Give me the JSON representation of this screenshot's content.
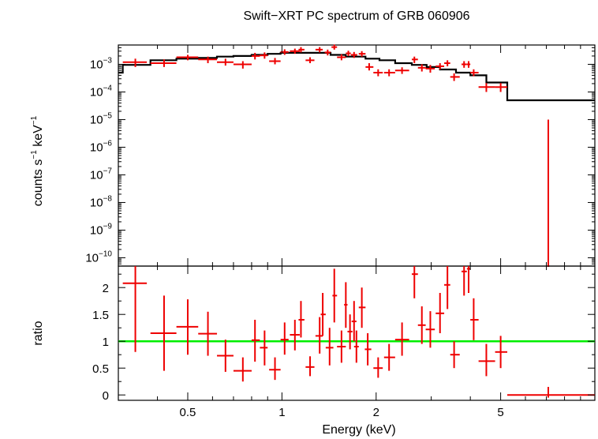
{
  "chart_data": {
    "title": "Swift−XRT PC spectrum of GRB 060906",
    "xlabel": "Energy (keV)",
    "x_scale": "log",
    "xlim": [
      0.3,
      10
    ],
    "x_ticks": [
      {
        "value": 0.5,
        "label": "0.5"
      },
      {
        "value": 1,
        "label": "1"
      },
      {
        "value": 2,
        "label": "2"
      },
      {
        "value": 5,
        "label": "5"
      }
    ],
    "panels": [
      {
        "type": "scatter",
        "ylabel_main": "counts s",
        "ylabel_exp1": "−1",
        "ylabel_mid": " keV",
        "ylabel_exp2": "−1",
        "y_scale": "log",
        "ylim": [
          5e-11,
          0.005
        ],
        "y_ticks": [
          {
            "value": 0.001,
            "base": "10",
            "exp": "−3"
          },
          {
            "value": 0.0001,
            "base": "10",
            "exp": "−4"
          },
          {
            "value": 1e-05,
            "base": "10",
            "exp": "−5"
          },
          {
            "value": 1e-06,
            "base": "10",
            "exp": "−6"
          },
          {
            "value": 1e-07,
            "base": "10",
            "exp": "−7"
          },
          {
            "value": 1e-08,
            "base": "10",
            "exp": "−8"
          },
          {
            "value": 1e-09,
            "base": "10",
            "exp": "−9"
          },
          {
            "value": 1e-10,
            "base": "10",
            "exp": "−10"
          }
        ],
        "data_color": "#ee0000",
        "model_color": "#000000",
        "data": [
          {
            "x": 0.34,
            "xlo": 0.31,
            "xhi": 0.37,
            "y": 0.0012,
            "ylo": 0.0008,
            "yhi": 0.0016
          },
          {
            "x": 0.42,
            "xlo": 0.38,
            "xhi": 0.46,
            "y": 0.0011,
            "ylo": 0.0008,
            "yhi": 0.0015
          },
          {
            "x": 0.5,
            "xlo": 0.46,
            "xhi": 0.54,
            "y": 0.0018,
            "ylo": 0.0014,
            "yhi": 0.0022
          },
          {
            "x": 0.58,
            "xlo": 0.54,
            "xhi": 0.62,
            "y": 0.0015,
            "ylo": 0.0011,
            "yhi": 0.0019
          },
          {
            "x": 0.66,
            "xlo": 0.62,
            "xhi": 0.7,
            "y": 0.0012,
            "ylo": 0.0009,
            "yhi": 0.0016
          },
          {
            "x": 0.75,
            "xlo": 0.7,
            "xhi": 0.8,
            "y": 0.001,
            "ylo": 0.0007,
            "yhi": 0.0013
          },
          {
            "x": 0.82,
            "xlo": 0.8,
            "xhi": 0.85,
            "y": 0.002,
            "ylo": 0.0015,
            "yhi": 0.0026
          },
          {
            "x": 0.88,
            "xlo": 0.85,
            "xhi": 0.9,
            "y": 0.0021,
            "ylo": 0.0016,
            "yhi": 0.0027
          },
          {
            "x": 0.95,
            "xlo": 0.91,
            "xhi": 0.99,
            "y": 0.0013,
            "ylo": 0.001,
            "yhi": 0.0017
          },
          {
            "x": 1.02,
            "xlo": 0.99,
            "xhi": 1.05,
            "y": 0.0028,
            "ylo": 0.0022,
            "yhi": 0.0035
          },
          {
            "x": 1.1,
            "xlo": 1.06,
            "xhi": 1.14,
            "y": 0.003,
            "ylo": 0.0024,
            "yhi": 0.0037
          },
          {
            "x": 1.15,
            "xlo": 1.13,
            "xhi": 1.18,
            "y": 0.0034,
            "ylo": 0.0027,
            "yhi": 0.0042
          },
          {
            "x": 1.23,
            "xlo": 1.19,
            "xhi": 1.27,
            "y": 0.0014,
            "ylo": 0.0011,
            "yhi": 0.0018
          },
          {
            "x": 1.32,
            "xlo": 1.28,
            "xhi": 1.35,
            "y": 0.0034,
            "ylo": 0.0027,
            "yhi": 0.0042
          },
          {
            "x": 1.4,
            "xlo": 1.37,
            "xhi": 1.43,
            "y": 0.0027,
            "ylo": 0.0021,
            "yhi": 0.0034
          },
          {
            "x": 1.47,
            "xlo": 1.44,
            "xhi": 1.5,
            "y": 0.0042,
            "ylo": 0.0034,
            "yhi": 0.0052
          },
          {
            "x": 1.55,
            "xlo": 1.5,
            "xhi": 1.6,
            "y": 0.0018,
            "ylo": 0.0014,
            "yhi": 0.0023
          },
          {
            "x": 1.63,
            "xlo": 1.6,
            "xhi": 1.66,
            "y": 0.0025,
            "ylo": 0.002,
            "yhi": 0.0031
          },
          {
            "x": 1.7,
            "xlo": 1.66,
            "xhi": 1.74,
            "y": 0.0022,
            "ylo": 0.0017,
            "yhi": 0.0028
          },
          {
            "x": 1.8,
            "xlo": 1.76,
            "xhi": 1.85,
            "y": 0.0024,
            "ylo": 0.0019,
            "yhi": 0.003
          },
          {
            "x": 1.9,
            "xlo": 1.85,
            "xhi": 1.96,
            "y": 0.0008,
            "ylo": 0.0006,
            "yhi": 0.0011
          },
          {
            "x": 2.03,
            "xlo": 1.96,
            "xhi": 2.1,
            "y": 0.0005,
            "ylo": 0.00037,
            "yhi": 0.00066
          },
          {
            "x": 2.2,
            "xlo": 2.12,
            "xhi": 2.3,
            "y": 0.0005,
            "ylo": 0.00037,
            "yhi": 0.00066
          },
          {
            "x": 2.42,
            "xlo": 2.3,
            "xhi": 2.55,
            "y": 0.0006,
            "ylo": 0.00045,
            "yhi": 0.00078
          },
          {
            "x": 2.65,
            "xlo": 2.6,
            "xhi": 2.72,
            "y": 0.0015,
            "ylo": 0.0011,
            "yhi": 0.0019
          },
          {
            "x": 2.8,
            "xlo": 2.72,
            "xhi": 2.88,
            "y": 0.00075,
            "ylo": 0.00055,
            "yhi": 0.001
          },
          {
            "x": 2.98,
            "xlo": 2.88,
            "xhi": 3.08,
            "y": 0.0007,
            "ylo": 0.0005,
            "yhi": 0.00095
          },
          {
            "x": 3.2,
            "xlo": 3.1,
            "xhi": 3.3,
            "y": 0.00085,
            "ylo": 0.00065,
            "yhi": 0.0011
          },
          {
            "x": 3.38,
            "xlo": 3.3,
            "xhi": 3.45,
            "y": 0.0011,
            "ylo": 0.00085,
            "yhi": 0.0014
          },
          {
            "x": 3.55,
            "xlo": 3.45,
            "xhi": 3.7,
            "y": 0.00035,
            "ylo": 0.00025,
            "yhi": 0.00047
          },
          {
            "x": 3.82,
            "xlo": 3.75,
            "xhi": 3.9,
            "y": 0.001,
            "ylo": 0.00075,
            "yhi": 0.0013
          },
          {
            "x": 3.95,
            "xlo": 3.9,
            "xhi": 4.0,
            "y": 0.001,
            "ylo": 0.00075,
            "yhi": 0.0013
          },
          {
            "x": 4.1,
            "xlo": 4.0,
            "xhi": 4.25,
            "y": 0.0005,
            "ylo": 0.00037,
            "yhi": 0.00066
          },
          {
            "x": 4.5,
            "xlo": 4.25,
            "xhi": 4.8,
            "y": 0.00015,
            "ylo": 0.0001,
            "yhi": 0.00021
          },
          {
            "x": 5.0,
            "xlo": 4.8,
            "xhi": 5.25,
            "y": 0.00015,
            "ylo": 0.0001,
            "yhi": 0.00021
          },
          {
            "x": 7.1,
            "xlo": 7.05,
            "xhi": 7.15,
            "y": 5e-11,
            "ylo": 5e-11,
            "yhi": 1e-05
          }
        ],
        "model": [
          {
            "e0": 0.3,
            "e1": 0.31,
            "y": 0.0005
          },
          {
            "e0": 0.31,
            "e1": 0.38,
            "y": 0.00095
          },
          {
            "e0": 0.38,
            "e1": 0.46,
            "y": 0.0014
          },
          {
            "e0": 0.46,
            "e1": 0.54,
            "y": 0.0016
          },
          {
            "e0": 0.54,
            "e1": 0.62,
            "y": 0.0017
          },
          {
            "e0": 0.62,
            "e1": 0.7,
            "y": 0.0019
          },
          {
            "e0": 0.7,
            "e1": 0.8,
            "y": 0.002
          },
          {
            "e0": 0.8,
            "e1": 0.9,
            "y": 0.0022
          },
          {
            "e0": 0.9,
            "e1": 0.99,
            "y": 0.0024
          },
          {
            "e0": 0.99,
            "e1": 1.2,
            "y": 0.0026
          },
          {
            "e0": 1.2,
            "e1": 1.43,
            "y": 0.0026
          },
          {
            "e0": 1.43,
            "e1": 1.6,
            "y": 0.0022
          },
          {
            "e0": 1.6,
            "e1": 1.85,
            "y": 0.0019
          },
          {
            "e0": 1.85,
            "e1": 2.05,
            "y": 0.0016
          },
          {
            "e0": 2.05,
            "e1": 2.3,
            "y": 0.0014
          },
          {
            "e0": 2.3,
            "e1": 2.6,
            "y": 0.0011
          },
          {
            "e0": 2.6,
            "e1": 2.9,
            "y": 0.00095
          },
          {
            "e0": 2.9,
            "e1": 3.2,
            "y": 0.0008
          },
          {
            "e0": 3.2,
            "e1": 3.6,
            "y": 0.00065
          },
          {
            "e0": 3.6,
            "e1": 4.0,
            "y": 0.0005
          },
          {
            "e0": 4.0,
            "e1": 4.5,
            "y": 0.0004
          },
          {
            "e0": 4.5,
            "e1": 5.25,
            "y": 0.00022
          },
          {
            "e0": 5.25,
            "e1": 10,
            "y": 5e-05
          }
        ]
      },
      {
        "type": "scatter",
        "ylabel": "ratio",
        "y_scale": "linear",
        "ylim": [
          -0.1,
          2.4
        ],
        "y_ticks": [
          {
            "value": 0,
            "label": "0"
          },
          {
            "value": 0.5,
            "label": "0.5"
          },
          {
            "value": 1,
            "label": "1"
          },
          {
            "value": 1.5,
            "label": "1.5"
          },
          {
            "value": 2,
            "label": "2"
          }
        ],
        "reference_line": {
          "y": 1,
          "color": "#00ee00"
        },
        "data_color": "#ee0000",
        "data": [
          {
            "x": 0.34,
            "xlo": 0.31,
            "xhi": 0.37,
            "y": 2.08,
            "ylo": 0.8,
            "yhi": 3.0
          },
          {
            "x": 0.42,
            "xlo": 0.38,
            "xhi": 0.46,
            "y": 1.15,
            "ylo": 0.45,
            "yhi": 1.85
          },
          {
            "x": 0.5,
            "xlo": 0.46,
            "xhi": 0.54,
            "y": 1.27,
            "ylo": 0.75,
            "yhi": 1.78
          },
          {
            "x": 0.58,
            "xlo": 0.54,
            "xhi": 0.62,
            "y": 1.14,
            "ylo": 0.73,
            "yhi": 1.55
          },
          {
            "x": 0.66,
            "xlo": 0.62,
            "xhi": 0.7,
            "y": 0.73,
            "ylo": 0.43,
            "yhi": 1.03
          },
          {
            "x": 0.75,
            "xlo": 0.7,
            "xhi": 0.8,
            "y": 0.45,
            "ylo": 0.25,
            "yhi": 0.7
          },
          {
            "x": 0.82,
            "xlo": 0.8,
            "xhi": 0.85,
            "y": 1.02,
            "ylo": 0.62,
            "yhi": 1.4
          },
          {
            "x": 0.88,
            "xlo": 0.85,
            "xhi": 0.9,
            "y": 0.88,
            "ylo": 0.55,
            "yhi": 1.2
          },
          {
            "x": 0.95,
            "xlo": 0.91,
            "xhi": 0.99,
            "y": 0.47,
            "ylo": 0.28,
            "yhi": 0.7
          },
          {
            "x": 1.02,
            "xlo": 0.99,
            "xhi": 1.05,
            "y": 1.03,
            "ylo": 0.75,
            "yhi": 1.35
          },
          {
            "x": 1.1,
            "xlo": 1.06,
            "xhi": 1.14,
            "y": 1.12,
            "ylo": 0.83,
            "yhi": 1.4
          },
          {
            "x": 1.15,
            "xlo": 1.13,
            "xhi": 1.18,
            "y": 1.4,
            "ylo": 1.07,
            "yhi": 1.75
          },
          {
            "x": 1.23,
            "xlo": 1.19,
            "xhi": 1.27,
            "y": 0.52,
            "ylo": 0.35,
            "yhi": 0.72
          },
          {
            "x": 1.32,
            "xlo": 1.28,
            "xhi": 1.35,
            "y": 1.1,
            "ylo": 0.77,
            "yhi": 1.45
          },
          {
            "x": 1.35,
            "xlo": 1.33,
            "xhi": 1.38,
            "y": 1.5,
            "ylo": 1.1,
            "yhi": 1.9
          },
          {
            "x": 1.42,
            "xlo": 1.38,
            "xhi": 1.46,
            "y": 0.88,
            "ylo": 0.55,
            "yhi": 1.25
          },
          {
            "x": 1.47,
            "xlo": 1.45,
            "xhi": 1.5,
            "y": 1.85,
            "ylo": 1.35,
            "yhi": 2.35
          },
          {
            "x": 1.55,
            "xlo": 1.5,
            "xhi": 1.6,
            "y": 0.9,
            "ylo": 0.6,
            "yhi": 1.2
          },
          {
            "x": 1.6,
            "xlo": 1.58,
            "xhi": 1.62,
            "y": 1.68,
            "ylo": 1.25,
            "yhi": 2.1
          },
          {
            "x": 1.65,
            "xlo": 1.62,
            "xhi": 1.68,
            "y": 1.18,
            "ylo": 0.85,
            "yhi": 1.5
          },
          {
            "x": 1.7,
            "xlo": 1.67,
            "xhi": 1.73,
            "y": 1.37,
            "ylo": 1.0,
            "yhi": 1.75
          },
          {
            "x": 1.73,
            "xlo": 1.7,
            "xhi": 1.76,
            "y": 0.9,
            "ylo": 0.6,
            "yhi": 1.2
          },
          {
            "x": 1.8,
            "xlo": 1.76,
            "xhi": 1.85,
            "y": 1.63,
            "ylo": 1.25,
            "yhi": 2.0
          },
          {
            "x": 1.88,
            "xlo": 1.84,
            "xhi": 1.93,
            "y": 0.85,
            "ylo": 0.55,
            "yhi": 1.15
          },
          {
            "x": 2.03,
            "xlo": 1.96,
            "xhi": 2.1,
            "y": 0.5,
            "ylo": 0.32,
            "yhi": 0.7
          },
          {
            "x": 2.2,
            "xlo": 2.12,
            "xhi": 2.3,
            "y": 0.7,
            "ylo": 0.45,
            "yhi": 0.95
          },
          {
            "x": 2.42,
            "xlo": 2.3,
            "xhi": 2.55,
            "y": 1.03,
            "ylo": 0.73,
            "yhi": 1.35
          },
          {
            "x": 2.65,
            "xlo": 2.6,
            "xhi": 2.72,
            "y": 2.25,
            "ylo": 1.8,
            "yhi": 2.7
          },
          {
            "x": 2.8,
            "xlo": 2.72,
            "xhi": 2.88,
            "y": 1.3,
            "ylo": 0.95,
            "yhi": 1.65
          },
          {
            "x": 2.98,
            "xlo": 2.88,
            "xhi": 3.08,
            "y": 1.22,
            "ylo": 0.88,
            "yhi": 1.56
          },
          {
            "x": 3.2,
            "xlo": 3.1,
            "xhi": 3.3,
            "y": 1.52,
            "ylo": 1.15,
            "yhi": 1.9
          },
          {
            "x": 3.38,
            "xlo": 3.3,
            "xhi": 3.45,
            "y": 2.05,
            "ylo": 1.6,
            "yhi": 2.5
          },
          {
            "x": 3.55,
            "xlo": 3.45,
            "xhi": 3.7,
            "y": 0.75,
            "ylo": 0.5,
            "yhi": 1.0
          },
          {
            "x": 3.82,
            "xlo": 3.75,
            "xhi": 3.9,
            "y": 2.3,
            "ylo": 1.85,
            "yhi": 2.75
          },
          {
            "x": 3.95,
            "xlo": 3.9,
            "xhi": 4.0,
            "y": 2.35,
            "ylo": 1.9,
            "yhi": 2.8
          },
          {
            "x": 4.1,
            "xlo": 4.0,
            "xhi": 4.25,
            "y": 1.4,
            "ylo": 1.02,
            "yhi": 1.8
          },
          {
            "x": 4.5,
            "xlo": 4.25,
            "xhi": 4.8,
            "y": 0.63,
            "ylo": 0.35,
            "yhi": 0.95
          },
          {
            "x": 5.0,
            "xlo": 4.8,
            "xhi": 5.25,
            "y": 0.8,
            "ylo": 0.5,
            "yhi": 1.1
          },
          {
            "x": 7.1,
            "xlo": 5.25,
            "xhi": 10,
            "y": 0.0,
            "ylo": -0.05,
            "yhi": 0.15
          }
        ]
      }
    ]
  }
}
